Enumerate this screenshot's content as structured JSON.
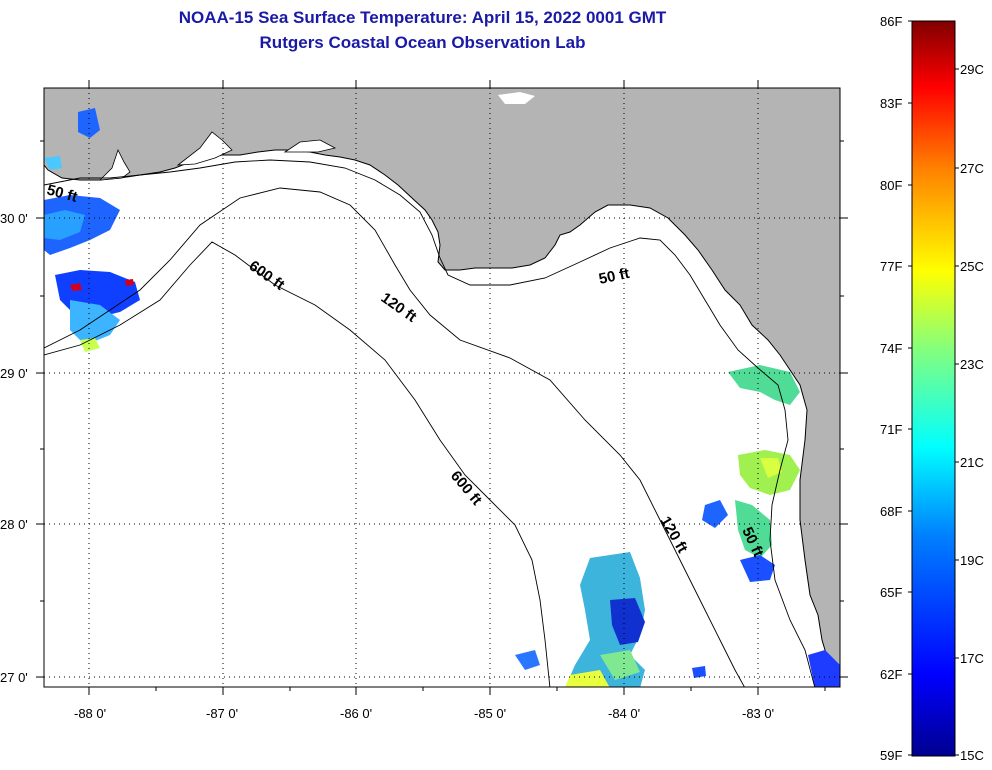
{
  "header": {
    "title": "NOAA-15 Sea Surface Temperature:  April 15, 2022 0001 GMT",
    "subtitle": "Rutgers Coastal Ocean Observation Lab"
  },
  "map": {
    "lon_labels": [
      "-88 0'",
      "-87 0'",
      "-86 0'",
      "-85 0'",
      "-84 0'",
      "-83 0'"
    ],
    "lat_labels": [
      "30 0'",
      "29 0'",
      "28 0'",
      "27 0'"
    ],
    "isobath_labels": [
      "50 ft",
      "600 ft",
      "120 ft",
      "50 ft",
      "600 ft",
      "120 ft",
      "50 ft"
    ],
    "colors": {
      "land": "#b4b4b4",
      "water": "#ffffff",
      "grid": "#000000"
    }
  },
  "colorbar": {
    "f_labels": [
      "86F",
      "83F",
      "80F",
      "77F",
      "74F",
      "71F",
      "68F",
      "65F",
      "62F",
      "59F"
    ],
    "c_labels": [
      "29C",
      "27C",
      "25C",
      "23C",
      "21C",
      "19C",
      "17C",
      "15C"
    ],
    "gradient": [
      "#00008f",
      "#0000ff",
      "#0080ff",
      "#00ffff",
      "#80ff80",
      "#ffff00",
      "#ff8000",
      "#ff0000",
      "#800000"
    ]
  }
}
